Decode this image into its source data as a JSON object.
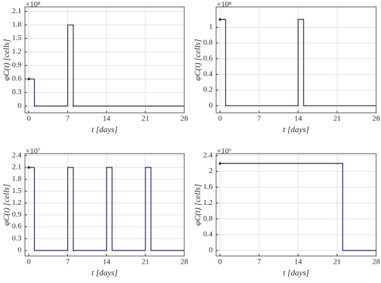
{
  "chart_data": [
    {
      "type": "line",
      "xlabel": "t [days]",
      "ylabel": "φC(t) [cells]",
      "y_exponent": "×10⁸",
      "x": [
        0,
        1,
        1,
        7,
        7,
        8,
        8,
        28
      ],
      "values": [
        0.6,
        0.6,
        0,
        0,
        1.8,
        1.8,
        0,
        0
      ],
      "color": "#1f1f6e",
      "xlim": [
        -0.7,
        28
      ],
      "xticks": [
        0,
        7,
        14,
        21,
        28
      ],
      "ylim": [
        -0.15,
        2.2
      ],
      "yticks": [
        0,
        0.3,
        0.6,
        0.9,
        1.2,
        1.5,
        1.8,
        2.1
      ],
      "grid": true
    },
    {
      "type": "line",
      "xlabel": "t [days]",
      "ylabel": "φC(t) [cells]",
      "y_exponent": "×10⁸",
      "x": [
        0,
        1,
        1,
        14,
        14,
        15,
        15,
        28
      ],
      "values": [
        1.1,
        1.1,
        0,
        0,
        1.1,
        1.1,
        0,
        0
      ],
      "color": "#1f1f6e",
      "xlim": [
        -0.7,
        28
      ],
      "xticks": [
        0,
        7,
        14,
        21,
        28
      ],
      "ylim": [
        -0.09,
        1.26
      ],
      "yticks": [
        0,
        0.2,
        0.4,
        0.6,
        0.8,
        1
      ],
      "grid": true
    },
    {
      "type": "line",
      "xlabel": "t [days]",
      "ylabel": "φC(t) [cells]",
      "y_exponent": "×10⁷",
      "x": [
        0,
        1,
        1,
        7,
        7,
        8,
        8,
        14,
        14,
        15,
        15,
        21,
        21,
        22,
        22,
        28
      ],
      "values": [
        2.1,
        2.1,
        0,
        0,
        2.1,
        2.1,
        0,
        0,
        2.1,
        2.1,
        0,
        0,
        2.1,
        2.1,
        0,
        0
      ],
      "color": "#1f1f6e",
      "xlim": [
        -0.7,
        28
      ],
      "xticks": [
        0,
        7,
        14,
        21,
        28
      ],
      "ylim": [
        -0.14,
        2.45
      ],
      "yticks": [
        0,
        0.3,
        0.6,
        0.9,
        1.2,
        1.5,
        1.8,
        2.1,
        2.4
      ],
      "grid": true
    },
    {
      "type": "line",
      "xlabel": "t [days]",
      "ylabel": "φC(t) [cells]",
      "y_exponent": "×10⁶",
      "x": [
        0,
        22,
        22,
        28
      ],
      "values": [
        2.2,
        2.2,
        0,
        0
      ],
      "color": "#1f1f6e",
      "xlim": [
        -0.7,
        28
      ],
      "xticks": [
        0,
        7,
        14,
        21,
        28
      ],
      "ylim": [
        -0.14,
        2.45
      ],
      "yticks": [
        0,
        0.4,
        0.8,
        1.2,
        1.6,
        2,
        2.4
      ],
      "grid": true
    }
  ]
}
